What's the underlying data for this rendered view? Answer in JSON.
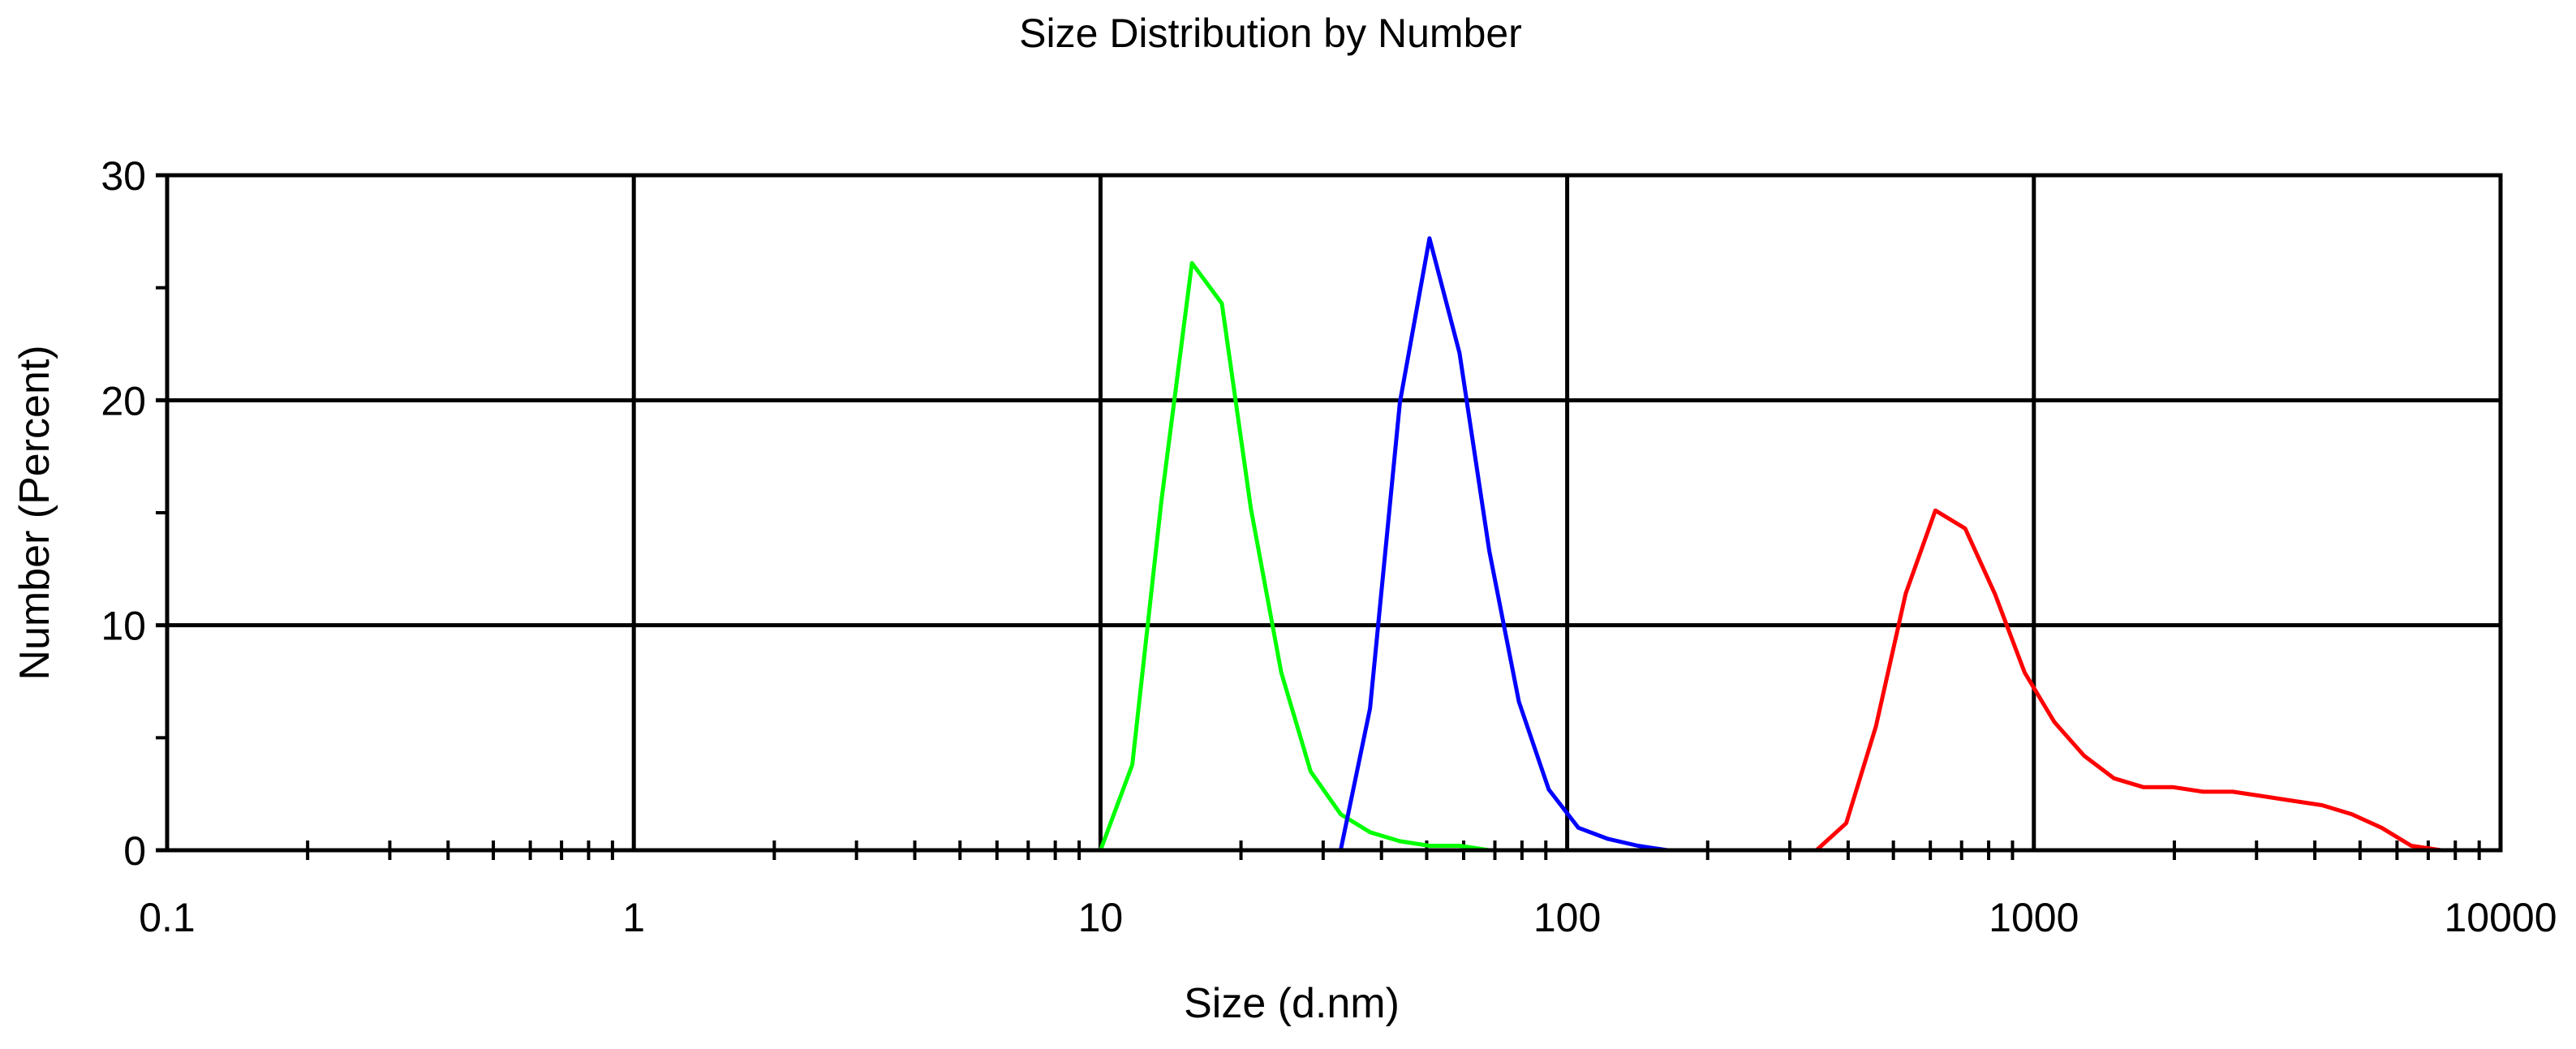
{
  "chart_data": {
    "type": "line",
    "title": "Size Distribution by Number",
    "xlabel": "Size (d.nm)",
    "ylabel": "Number (Percent)",
    "x_scale": "log",
    "xlim": [
      0.1,
      10000
    ],
    "ylim": [
      0,
      30
    ],
    "x_major_ticks": [
      0.1,
      1,
      10,
      100,
      1000,
      10000
    ],
    "x_tick_labels": [
      "0.1",
      "1",
      "10",
      "100",
      "1000",
      "10000"
    ],
    "y_major_ticks": [
      0,
      10,
      20,
      30
    ],
    "y_tick_labels": [
      "0",
      "10",
      "20",
      "30"
    ],
    "y_minor_ticks": [
      5,
      15,
      25
    ],
    "grid": true,
    "legend": "none",
    "series": [
      {
        "color": "#00ff00",
        "x": [
          0.4,
          1,
          5,
          10,
          11.7,
          13.5,
          15.7,
          18.2,
          21,
          24.4,
          28.2,
          32.7,
          37.8,
          43.8,
          50.7,
          58.8,
          68.1,
          100,
          1000,
          10000
        ],
        "y": [
          0,
          0,
          0,
          0,
          3.8,
          15.5,
          26.1,
          24.3,
          15.2,
          7.9,
          3.5,
          1.6,
          0.8,
          0.4,
          0.2,
          0.2,
          0,
          0,
          0,
          0
        ]
      },
      {
        "color": "#0000ff",
        "x": [
          0.4,
          1,
          10,
          32.7,
          37.8,
          43.8,
          50.7,
          58.8,
          68.1,
          78.8,
          91.3,
          105.7,
          122.4,
          141.8,
          164.2,
          200,
          1000,
          10000
        ],
        "y": [
          0,
          0,
          0,
          0,
          6.3,
          19.9,
          27.2,
          22.1,
          13.3,
          6.6,
          2.7,
          1.0,
          0.5,
          0.2,
          0,
          0,
          0,
          0
        ]
      },
      {
        "color": "#ff0000",
        "x": [
          10,
          100,
          342,
          396.1,
          458.7,
          531.2,
          615.1,
          712.4,
          825,
          955.4,
          1106,
          1281,
          1484,
          1718,
          1990,
          2305,
          2669,
          3091,
          3580,
          4145,
          4801,
          5560,
          6439,
          7456,
          10000
        ],
        "y": [
          0,
          0,
          0,
          1.2,
          5.5,
          11.4,
          15.1,
          14.3,
          11.4,
          7.9,
          5.7,
          4.2,
          3.2,
          2.8,
          2.8,
          2.6,
          2.6,
          2.4,
          2.2,
          2.0,
          1.6,
          1.0,
          0.2,
          0,
          0
        ]
      }
    ]
  }
}
